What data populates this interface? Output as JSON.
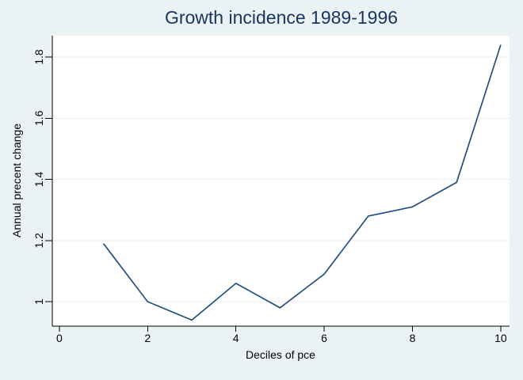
{
  "figure": {
    "colors": {
      "bg": "#eaf2f3",
      "plot_bg": "#ffffff",
      "grid": "#e8eef3",
      "axis": "#000000",
      "text": "#000000",
      "title": "#1a3560",
      "line": "#23507d"
    }
  },
  "chart_data": {
    "type": "line",
    "title": "Growth incidence 1989-1996",
    "xlabel": "Deciles of pce",
    "ylabel": "Annual precent change",
    "x": [
      1,
      2,
      3,
      4,
      5,
      6,
      7,
      8,
      9,
      10
    ],
    "values": [
      1.19,
      1.0,
      0.94,
      1.06,
      0.98,
      1.09,
      1.28,
      1.31,
      1.39,
      1.84
    ],
    "xticks": [
      0,
      2,
      4,
      6,
      8,
      10
    ],
    "yticks": [
      1,
      1.2,
      1.4,
      1.6,
      1.8
    ],
    "xlim": [
      -0.16,
      10.2
    ],
    "ylim": [
      0.92,
      1.87
    ],
    "grid": "horizontal",
    "legend": "none",
    "markers": "none"
  }
}
